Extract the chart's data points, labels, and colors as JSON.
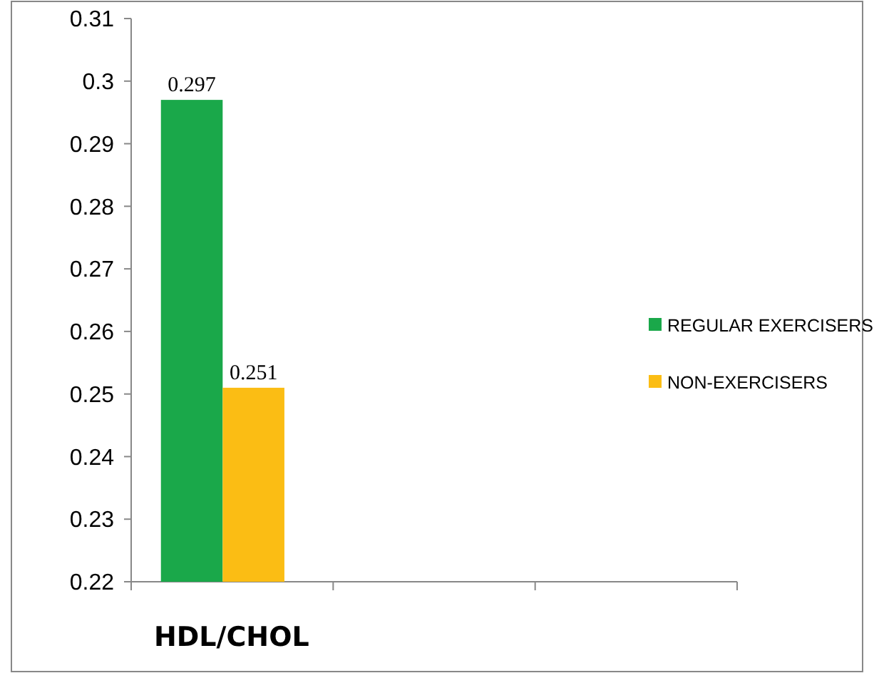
{
  "chart_data": {
    "type": "bar",
    "xlabel": "HDL/CHOL",
    "categories": [
      null,
      null,
      null
    ],
    "series": [
      {
        "name": "REGULAR EXERCISERS",
        "color": "#1aa84a",
        "values": [
          0.297,
          null,
          null
        ]
      },
      {
        "name": "NON-EXERCISERS",
        "color": "#fbbd14",
        "values": [
          0.251,
          null,
          null
        ]
      }
    ],
    "ylim": [
      0.22,
      0.31
    ],
    "yticks": [
      0.22,
      0.23,
      0.24,
      0.25,
      0.26,
      0.27,
      0.28,
      0.29,
      {
        "value": 0.3,
        "label": "0.3"
      },
      0.31
    ],
    "data_labels": true,
    "legend": "right",
    "grid": false
  }
}
